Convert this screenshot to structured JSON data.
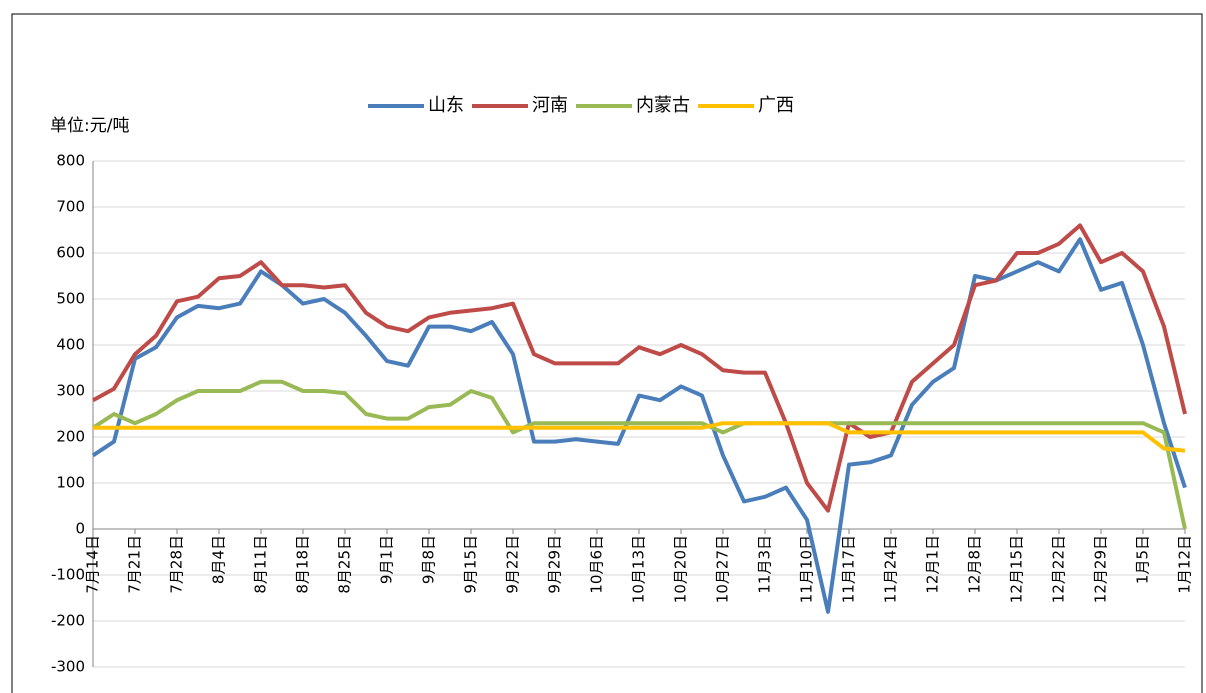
{
  "chart_data": {
    "type": "line",
    "y_label": "单位:元/吨",
    "categories": [
      "7月14日",
      null,
      "7月21日",
      null,
      "7月28日",
      null,
      "8月4日",
      null,
      "8月11日",
      null,
      "8月18日",
      null,
      "8月25日",
      null,
      "9月1日",
      null,
      "9月8日",
      null,
      "9月15日",
      null,
      "9月22日",
      null,
      "9月29日",
      null,
      "10月6日",
      null,
      "10月13日",
      null,
      "10月20日",
      null,
      "10月27日",
      null,
      "11月3日",
      null,
      "11月10日",
      null,
      "11月17日",
      null,
      "11月24日",
      null,
      "12月1日",
      null,
      "12月8日",
      null,
      "12月15日",
      null,
      "12月22日",
      null,
      "12月29日",
      null,
      "1月5日",
      null,
      "1月12日"
    ],
    "series": [
      {
        "name": "山东",
        "color": "#4a7ebb",
        "values": [
          160,
          190,
          370,
          395,
          460,
          485,
          480,
          490,
          560,
          530,
          490,
          500,
          470,
          420,
          365,
          355,
          440,
          440,
          430,
          450,
          380,
          190,
          190,
          195,
          190,
          185,
          290,
          280,
          310,
          290,
          160,
          60,
          70,
          90,
          20,
          -180,
          140,
          145,
          160,
          270,
          320,
          350,
          550,
          540,
          560,
          580,
          560,
          630,
          520,
          535,
          400,
          230,
          90
        ]
      },
      {
        "name": "河南",
        "color": "#be4b48",
        "values": [
          280,
          305,
          380,
          420,
          495,
          505,
          545,
          550,
          580,
          530,
          530,
          525,
          530,
          470,
          440,
          430,
          460,
          470,
          475,
          480,
          490,
          380,
          360,
          360,
          360,
          360,
          395,
          380,
          400,
          380,
          345,
          340,
          340,
          230,
          100,
          40,
          230,
          200,
          210,
          320,
          360,
          400,
          530,
          540,
          600,
          600,
          620,
          660,
          580,
          600,
          560,
          440,
          250
        ]
      },
      {
        "name": "内蒙古",
        "color": "#98b954",
        "values": [
          220,
          250,
          230,
          250,
          280,
          300,
          300,
          300,
          320,
          320,
          300,
          300,
          295,
          250,
          240,
          240,
          265,
          270,
          300,
          285,
          210,
          230,
          230,
          230,
          230,
          230,
          230,
          230,
          230,
          230,
          210,
          230,
          230,
          230,
          230,
          230,
          230,
          230,
          230,
          230,
          230,
          230,
          230,
          230,
          230,
          230,
          230,
          230,
          230,
          230,
          230,
          210,
          0
        ]
      },
      {
        "name": "广西",
        "color": "#ffc000",
        "values": [
          220,
          220,
          220,
          220,
          220,
          220,
          220,
          220,
          220,
          220,
          220,
          220,
          220,
          220,
          220,
          220,
          220,
          220,
          220,
          220,
          220,
          220,
          220,
          220,
          220,
          220,
          220,
          220,
          220,
          220,
          230,
          230,
          230,
          230,
          230,
          230,
          210,
          210,
          210,
          210,
          210,
          210,
          210,
          210,
          210,
          210,
          210,
          210,
          210,
          210,
          210,
          175,
          170
        ]
      }
    ],
    "ylim": [
      -300,
      800
    ],
    "yticks": [
      -300,
      -200,
      -100,
      0,
      100,
      200,
      300,
      400,
      500,
      600,
      700,
      800
    ],
    "grid": true,
    "legend": "top"
  }
}
